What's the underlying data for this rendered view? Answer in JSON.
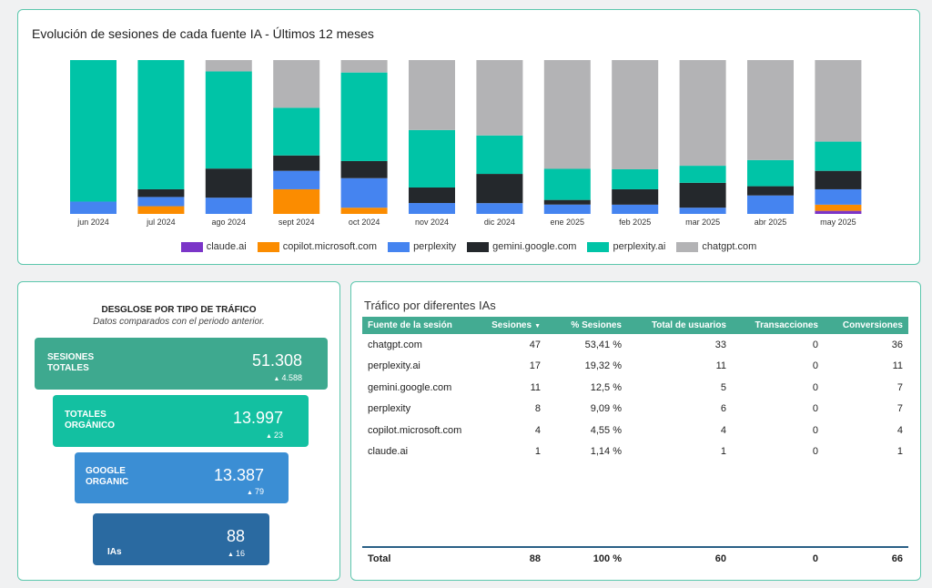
{
  "colors": {
    "claude.ai": "#7b35c8",
    "copilot.microsoft.com": "#fb8c00",
    "perplexity": "#4584f0",
    "gemini.google.com": "#24282c",
    "perplexity.ai": "#00c4a7",
    "chatgpt.com": "#b3b3b5"
  },
  "chart_data": {
    "type": "bar",
    "stacked": true,
    "normalized": true,
    "title": "Evolución de sesiones de cada fuente IA - Últimos 12 meses",
    "categories": [
      "jun 2024",
      "jul 2024",
      "ago 2024",
      "sept 2024",
      "oct 2024",
      "nov 2024",
      "dic 2024",
      "ene 2025",
      "feb 2025",
      "mar 2025",
      "abr 2025",
      "may 2025"
    ],
    "legend": [
      "claude.ai",
      "copilot.microsoft.com",
      "perplexity",
      "gemini.google.com",
      "perplexity.ai",
      "chatgpt.com"
    ],
    "legend_position": "bottom",
    "ylim": [
      0,
      100
    ],
    "series": [
      {
        "name": "claude.ai",
        "values": [
          0,
          0,
          0,
          0,
          0,
          0,
          0,
          0,
          0,
          0,
          0,
          2
        ]
      },
      {
        "name": "copilot.microsoft.com",
        "values": [
          0,
          5,
          0,
          16,
          4,
          0,
          0,
          0,
          0,
          0,
          0,
          4
        ]
      },
      {
        "name": "perplexity",
        "values": [
          8,
          6,
          10,
          12,
          19,
          7,
          7,
          6,
          6,
          4,
          12,
          10
        ]
      },
      {
        "name": "gemini.google.com",
        "values": [
          0,
          5,
          18,
          10,
          11,
          10,
          19,
          3,
          10,
          16,
          6,
          12
        ]
      },
      {
        "name": "perplexity.ai",
        "values": [
          92,
          84,
          60,
          31,
          57,
          37,
          25,
          20,
          13,
          11,
          17,
          19
        ]
      },
      {
        "name": "chatgpt.com",
        "values": [
          0,
          0,
          7,
          31,
          8,
          45,
          49,
          70,
          71,
          68,
          65,
          53
        ]
      }
    ]
  },
  "funnel": {
    "title": "DESGLOSE POR TIPO DE TRÁFICO",
    "subtitle": "Datos comparados con el periodo anterior.",
    "stages": [
      {
        "label": "SESIONES\nTOTALES",
        "value": "51.308",
        "delta": "4.588",
        "color": "#3ea98f"
      },
      {
        "label": "TOTALES\nORGÁNICO",
        "value": "13.997",
        "delta": "23",
        "color": "#13c0a1"
      },
      {
        "label": "GOOGLE\nORGANIC",
        "value": "13.387",
        "delta": "79",
        "color": "#3b8ed4"
      },
      {
        "label": "IAs",
        "value": "88",
        "delta": "16",
        "color": "#2a6aa1"
      }
    ]
  },
  "table": {
    "title": "Tráfico por diferentes IAs",
    "headers": [
      "Fuente de la sesión",
      "Sesiones",
      "% Sesiones",
      "Total de usuarios",
      "Transacciones",
      "Conversiones"
    ],
    "rows": [
      [
        "chatgpt.com",
        "47",
        "53,41 %",
        "33",
        "0",
        "36"
      ],
      [
        "perplexity.ai",
        "17",
        "19,32 %",
        "11",
        "0",
        "11"
      ],
      [
        "gemini.google.com",
        "11",
        "12,5 %",
        "5",
        "0",
        "7"
      ],
      [
        "perplexity",
        "8",
        "9,09 %",
        "6",
        "0",
        "7"
      ],
      [
        "copilot.microsoft.com",
        "4",
        "4,55 %",
        "4",
        "0",
        "4"
      ],
      [
        "claude.ai",
        "1",
        "1,14 %",
        "1",
        "0",
        "1"
      ]
    ],
    "total": [
      "Total",
      "88",
      "100 %",
      "60",
      "0",
      "66"
    ]
  }
}
